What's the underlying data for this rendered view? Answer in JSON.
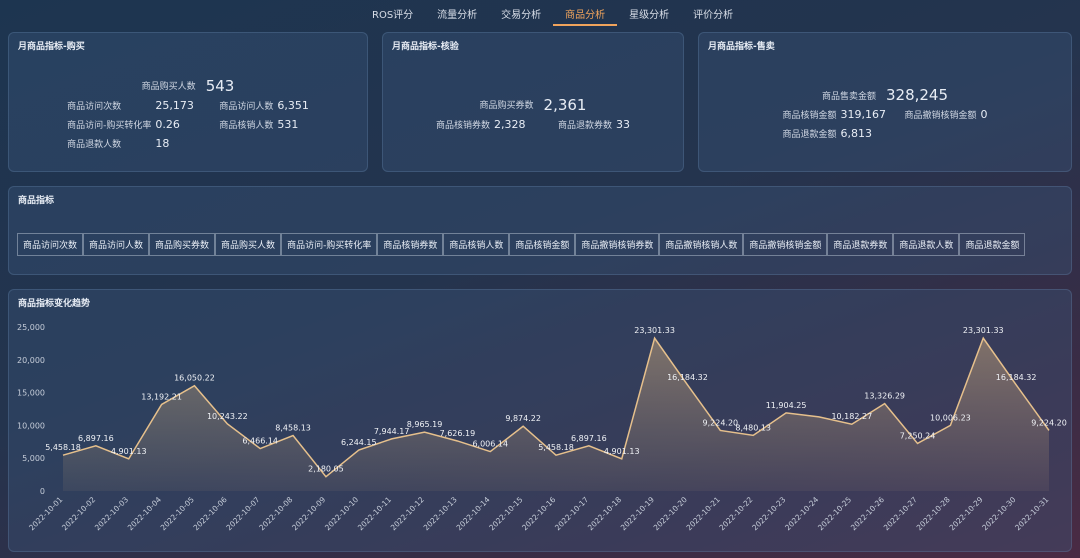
{
  "tabs": [
    "ROS评分",
    "流量分析",
    "交易分析",
    "商品分析",
    "星级分析",
    "评价分析"
  ],
  "active_tab": 3,
  "cards": [
    {
      "title": "月商品指标-购买",
      "main": {
        "label": "商品购买人数",
        "value": "543"
      },
      "items": [
        {
          "label": "商品访问次数",
          "value": "25,173"
        },
        {
          "label": "商品访问人数",
          "value": "6,351"
        },
        {
          "label": "商品访问-购买转化率",
          "value": "0.26"
        },
        {
          "label": "商品核销人数",
          "value": "531"
        },
        {
          "label": "商品退款人数",
          "value": "18"
        }
      ]
    },
    {
      "title": "月商品指标-核验",
      "main": {
        "label": "商品购买券数",
        "value": "2,361"
      },
      "items": [
        {
          "label": "商品核销券数",
          "value": "2,328"
        },
        {
          "label": "商品退款券数",
          "value": "33"
        }
      ]
    },
    {
      "title": "月商品指标-售卖",
      "main": {
        "label": "商品售卖金额",
        "value": "328,245"
      },
      "items": [
        {
          "label": "商品核销金额",
          "value": "319,167"
        },
        {
          "label": "商品撤销核销金额",
          "value": "0"
        },
        {
          "label": "商品退款金额",
          "value": "6,813"
        }
      ]
    }
  ],
  "indicators": {
    "title": "商品指标",
    "buttons": [
      "商品访问次数",
      "商品访问人数",
      "商品购买券数",
      "商品购买人数",
      "商品访问-购买转化率",
      "商品核销券数",
      "商品核销人数",
      "商品核销金额",
      "商品撤销核销券数",
      "商品撤销核销人数",
      "商品撤销核销金额",
      "商品退款券数",
      "商品退款人数",
      "商品退款金额"
    ]
  },
  "trend": {
    "type": "line",
    "title": "商品指标变化趋势",
    "color": "#e6c08c",
    "grid": false,
    "categories": [
      "2022-10-01",
      "2022-10-02",
      "2022-10-03",
      "2022-10-04",
      "2022-10-05",
      "2022-10-06",
      "2022-10-07",
      "2022-10-08",
      "2022-10-09",
      "2022-10-10",
      "2022-10-11",
      "2022-10-12",
      "2022-10-13",
      "2022-10-14",
      "2022-10-15",
      "2022-10-16",
      "2022-10-17",
      "2022-10-18",
      "2022-10-19",
      "2022-10-20",
      "2022-10-21",
      "2022-10-22",
      "2022-10-23",
      "2022-10-24",
      "2022-10-25",
      "2022-10-26",
      "2022-10-27",
      "2022-10-28",
      "2022-10-29",
      "2022-10-30",
      "2022-10-31"
    ],
    "values": [
      5458.18,
      6897.16,
      4901.13,
      13192.21,
      16050.22,
      10243.22,
      6466.14,
      8458.13,
      2180.05,
      6244.15,
      7944.17,
      8965.19,
      7626.19,
      6006.14,
      9874.22,
      5458.18,
      6897.16,
      4901.13,
      23301.33,
      16184.32,
      9224.2,
      8480.13,
      11904.25,
      11300,
      10182.27,
      13326.29,
      7250.24,
      10006.23,
      23301.33,
      16184.32,
      9224.2
    ],
    "value_labels": [
      "5,458.18",
      "6,897.16",
      "4,901.13",
      "13,192.21",
      "16,050.22",
      "10,243.22",
      "6,466.14",
      "8,458.13",
      "2,180.05",
      "6,244.15",
      "7,944.17",
      "8,965.19",
      "7,626.19",
      "6,006.14",
      "9,874.22",
      "5,458.18",
      "6,897.16",
      "4,901.13",
      "23,301.33",
      "16,184.32",
      "9,224.20",
      "8,480.13",
      "11,904.25",
      null,
      "10,182.27",
      "13,326.29",
      "7,250.24",
      "10,006.23",
      "23,301.33",
      "16,184.32",
      "9,224.20"
    ],
    "ylim": [
      0,
      25000
    ],
    "yticks": [
      0,
      {
        "value": 5000,
        "label": "5,000"
      },
      {
        "value": 10000,
        "label": "10,000"
      },
      {
        "value": 15000,
        "label": "15,000"
      },
      {
        "value": 20000,
        "label": "20,000"
      },
      {
        "value": 25000,
        "label": "25,000"
      }
    ]
  }
}
